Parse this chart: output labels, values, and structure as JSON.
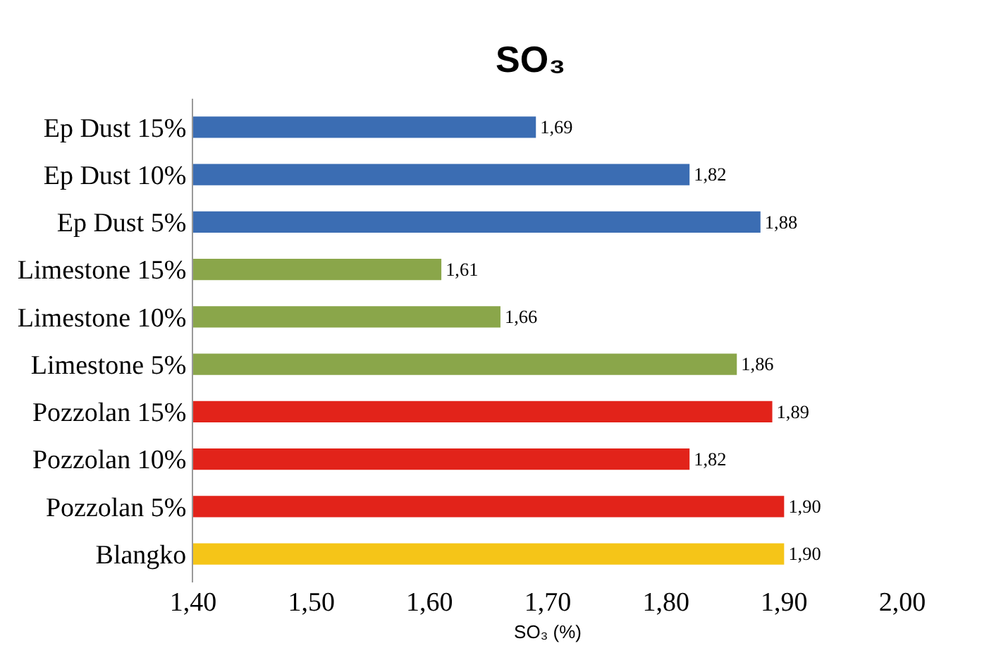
{
  "chart_data": {
    "type": "bar",
    "orientation": "horizontal",
    "title": "SO₃",
    "xlabel": "SO₃ (%)",
    "categories": [
      "Ep Dust 15%",
      "Ep Dust 10%",
      "Ep Dust 5%",
      "Limestone 15%",
      "Limestone 10%",
      "Limestone 5%",
      "Pozzolan 15%",
      "Pozzolan 10%",
      "Pozzolan 5%",
      "Blangko"
    ],
    "values": [
      1.69,
      1.82,
      1.88,
      1.61,
      1.66,
      1.86,
      1.89,
      1.82,
      1.9,
      1.9
    ],
    "value_labels": [
      "1,69",
      "1,82",
      "1,88",
      "1,61",
      "1,66",
      "1,86",
      "1,89",
      "1,82",
      "1,90",
      "1,90"
    ],
    "colors": [
      "#3b6db3",
      "#3b6db3",
      "#3b6db3",
      "#8aa64a",
      "#8aa64a",
      "#8aa64a",
      "#e2231a",
      "#e2231a",
      "#e2231a",
      "#f5c518"
    ],
    "xlim": [
      1.4,
      2.0
    ],
    "xticks": [
      {
        "value": 1.4,
        "label": "1,40"
      },
      {
        "value": 1.5,
        "label": "1,50"
      },
      {
        "value": 1.6,
        "label": "1,60"
      },
      {
        "value": 1.7,
        "label": "1,70"
      },
      {
        "value": 1.8,
        "label": "1,80"
      },
      {
        "value": 1.9,
        "label": "1,90"
      },
      {
        "value": 2.0,
        "label": "2,00"
      }
    ],
    "grid": false
  }
}
